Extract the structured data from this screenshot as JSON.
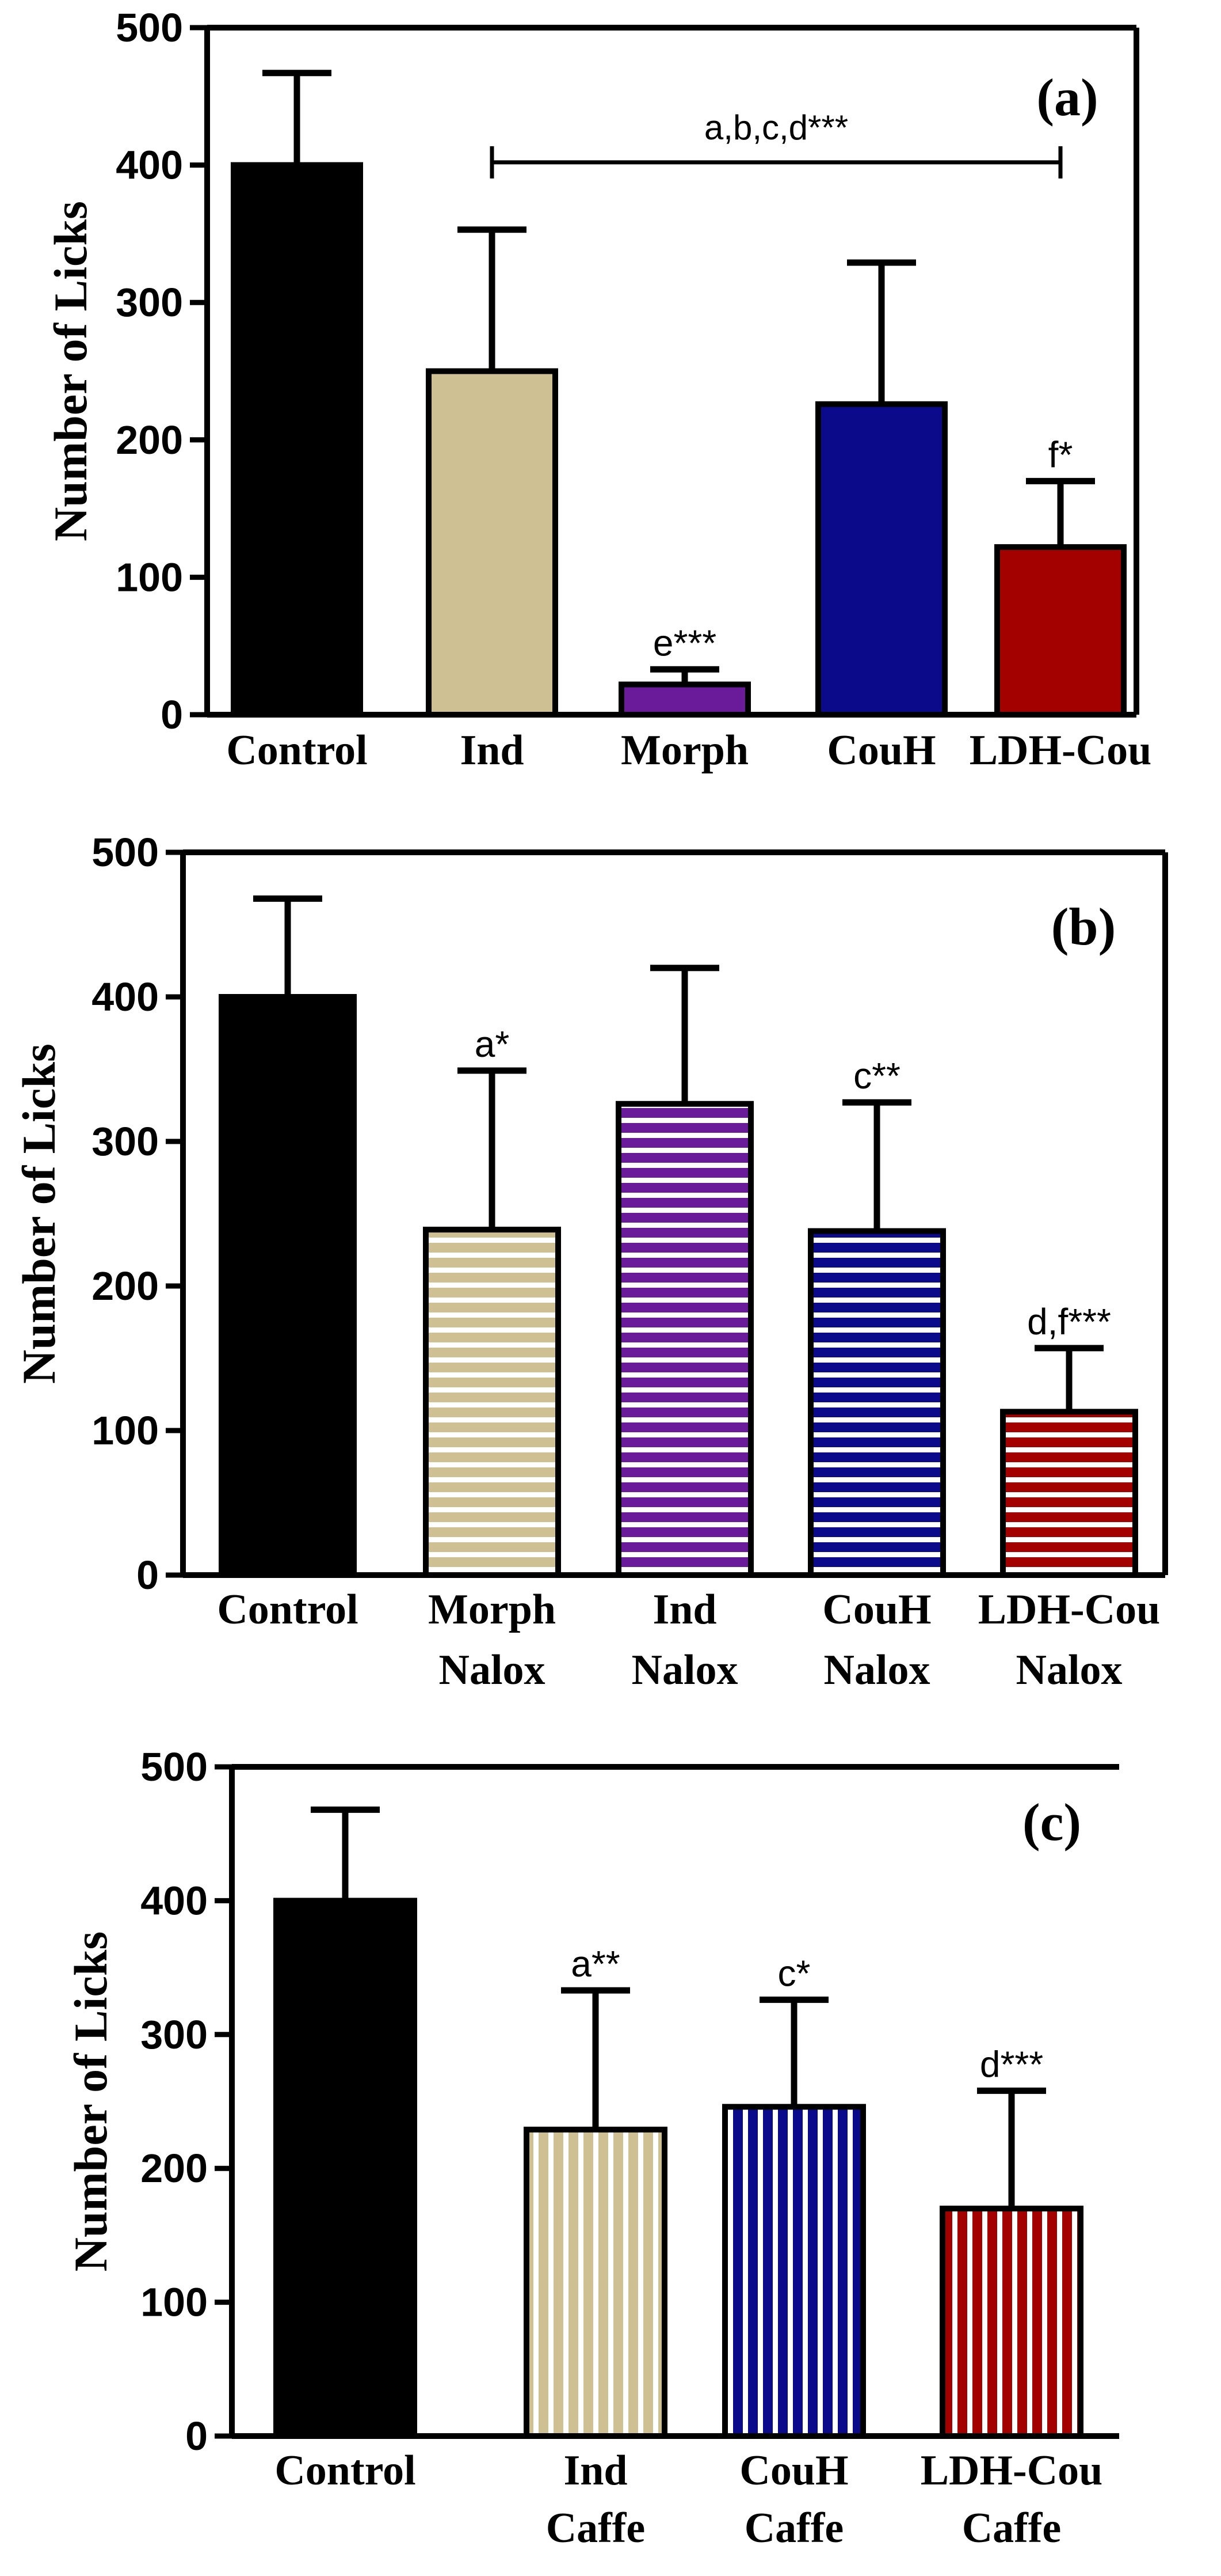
{
  "chart_data": [
    {
      "type": "bar",
      "panel_label": "(a)",
      "ylabel": "Number of Licks",
      "ylim": [
        0,
        500
      ],
      "yticks": [
        "0",
        "100",
        "200",
        "300",
        "400",
        "500"
      ],
      "categories": [
        [
          "Control"
        ],
        [
          "Ind"
        ],
        [
          "Morph"
        ],
        [
          "CouH"
        ],
        [
          "LDH-Cou"
        ]
      ],
      "values": [
        400,
        250,
        22,
        226,
        122
      ],
      "errors": [
        67,
        103,
        11,
        103,
        48
      ],
      "colors": [
        "#000000",
        "#cfc093",
        "#6a1b9a",
        "#0a0a8a",
        "#a30000"
      ],
      "patterns": [
        "solid",
        "solid",
        "solid",
        "solid",
        "solid"
      ],
      "annotations": [
        "",
        "",
        "e***",
        "",
        "f*"
      ],
      "bracket": {
        "from": 1,
        "to": 4,
        "y": 402,
        "label": "a,b,c,d***"
      }
    },
    {
      "type": "bar",
      "panel_label": "(b)",
      "ylabel": "Number of  Licks",
      "ylim": [
        0,
        500
      ],
      "yticks": [
        "0",
        "100",
        "200",
        "300",
        "400",
        "500"
      ],
      "categories": [
        [
          "Control"
        ],
        [
          "Morph",
          "Nalox"
        ],
        [
          "Ind",
          "Nalox"
        ],
        [
          "CouH",
          "Nalox"
        ],
        [
          "LDH-Cou",
          "Nalox"
        ]
      ],
      "values": [
        400,
        239,
        326,
        238,
        113
      ],
      "errors": [
        68,
        110,
        94,
        89,
        44
      ],
      "colors": [
        "#000000",
        "#cfc093",
        "#6a1b9a",
        "#0a0a8a",
        "#a30000"
      ],
      "patterns": [
        "solid",
        "hstripe",
        "hstripe",
        "hstripe",
        "hstripe"
      ],
      "annotations": [
        "",
        "a*",
        "",
        "c**",
        "d,f***"
      ]
    },
    {
      "type": "bar",
      "panel_label": "(c)",
      "ylabel": "Number of  Licks",
      "ylim": [
        0,
        500
      ],
      "yticks": [
        "0",
        "100",
        "200",
        "300",
        "400",
        "500"
      ],
      "categories": [
        [
          "Control"
        ],
        [
          "Ind",
          "Caffe"
        ],
        [
          "CouH",
          "Caffe"
        ],
        [
          "LDH-Cou",
          "Caffe"
        ]
      ],
      "values": [
        400,
        229,
        246,
        170
      ],
      "errors": [
        68,
        104,
        80,
        88
      ],
      "colors": [
        "#000000",
        "#cfc093",
        "#0a0a8a",
        "#a30000"
      ],
      "patterns": [
        "solid",
        "vstripe",
        "vstripe",
        "vstripe"
      ],
      "annotations": [
        "",
        "a**",
        "c*",
        "d***"
      ]
    }
  ]
}
